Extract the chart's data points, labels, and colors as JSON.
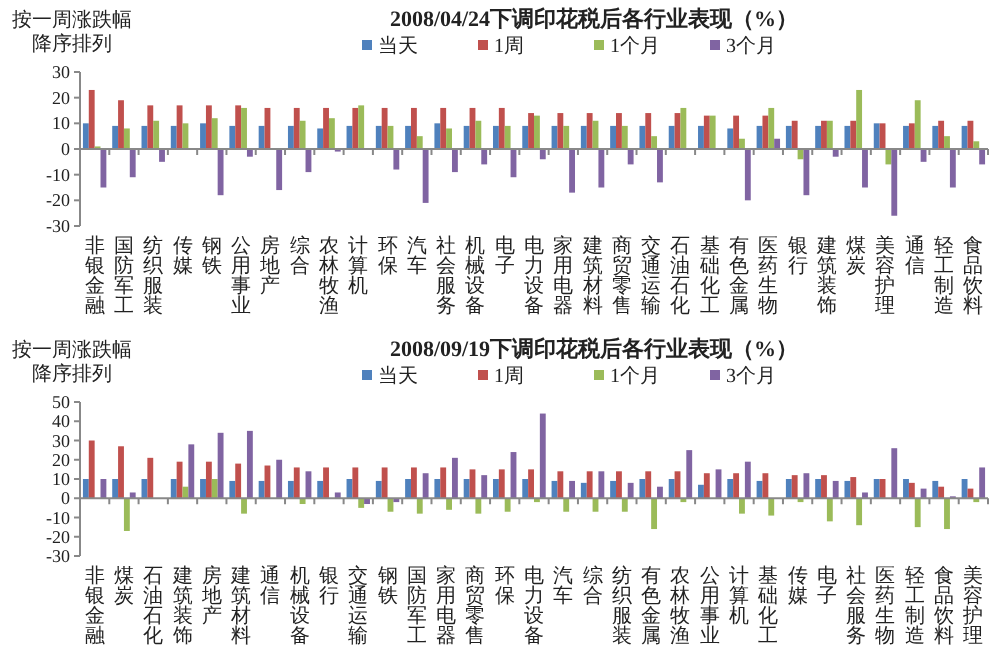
{
  "chart_data": [
    {
      "type": "bar",
      "title": "2008/04/24下调印花税后各行业表现（%）",
      "annotations": [
        "按一周涨跌幅",
        "降序排列"
      ],
      "legend": "top",
      "ylim": [
        -30,
        30
      ],
      "yticks": [
        -30,
        -20,
        -10,
        0,
        10,
        20,
        30
      ],
      "categories": [
        "非银金融",
        "国防军工",
        "纺织服装",
        "传媒",
        "钢铁",
        "公用事业",
        "房地产",
        "综合",
        "农林牧渔",
        "计算机",
        "环保",
        "汽车",
        "社会服务",
        "机械设备",
        "电子",
        "电力设备",
        "家用电器",
        "建筑材料",
        "商贸零售",
        "交通运输",
        "石油石化",
        "基础化工",
        "有色金属",
        "医药生物",
        "银行",
        "建筑装饰",
        "煤炭",
        "美容护理",
        "通信",
        "轻工制造",
        "食品饮料"
      ],
      "series": [
        {
          "name": "当天",
          "color": "#4f81bd",
          "values": [
            10,
            9,
            9,
            9,
            10,
            9,
            9,
            9,
            8,
            9,
            9,
            9,
            10,
            9,
            9,
            9,
            9,
            9,
            9,
            9,
            9,
            9,
            8,
            9,
            9,
            9,
            9,
            10,
            9,
            9,
            9
          ]
        },
        {
          "name": "1周",
          "color": "#c0504d",
          "values": [
            23,
            19,
            17,
            17,
            17,
            17,
            16,
            16,
            16,
            16,
            16,
            16,
            16,
            16,
            16,
            14,
            14,
            14,
            14,
            14,
            14,
            13,
            13,
            13,
            11,
            11,
            11,
            10,
            10,
            11,
            11
          ]
        },
        {
          "name": "1个月",
          "color": "#9bbb59",
          "values": [
            1,
            8,
            11,
            10,
            12,
            16,
            0,
            11,
            12,
            17,
            9,
            5,
            8,
            11,
            9,
            13,
            9,
            11,
            9,
            5,
            16,
            13,
            4,
            16,
            -4,
            11,
            23,
            -6,
            19,
            5,
            3
          ]
        },
        {
          "name": "3个月",
          "color": "#8064a2",
          "values": [
            -15,
            -11,
            -5,
            0,
            -18,
            -3,
            -16,
            -9,
            -1,
            0,
            -8,
            -21,
            -9,
            -6,
            -11,
            -4,
            -17,
            -15,
            -6,
            -13,
            0,
            0,
            -20,
            4,
            -18,
            -3,
            -15,
            -26,
            -5,
            -15,
            -6
          ]
        }
      ]
    },
    {
      "type": "bar",
      "title": "2008/09/19下调印花税后各行业表现（%）",
      "annotations": [
        "按一周涨跌幅",
        "降序排列"
      ],
      "legend": "top",
      "ylim": [
        -30,
        50
      ],
      "yticks": [
        -30,
        -20,
        -10,
        0,
        10,
        20,
        30,
        40,
        50
      ],
      "categories": [
        "非银金融",
        "煤炭",
        "石油石化",
        "建筑装饰",
        "房地产",
        "建筑材料",
        "通信",
        "机械设备",
        "银行",
        "交通运输",
        "钢铁",
        "国防军工",
        "家用电器",
        "商贸零售",
        "环保",
        "电力设备",
        "汽车",
        "综合",
        "纺织服装",
        "有色金属",
        "农林牧渔",
        "公用事业",
        "计算机",
        "基础化工",
        "传媒",
        "电子",
        "社会服务",
        "医药生物",
        "轻工制造",
        "食品饮料",
        "美容护理"
      ],
      "series": [
        {
          "name": "当天",
          "color": "#4f81bd",
          "values": [
            10,
            10,
            10,
            10,
            10,
            9,
            9,
            9,
            9,
            10,
            9,
            10,
            10,
            10,
            10,
            10,
            9,
            8,
            9,
            10,
            10,
            7,
            10,
            9,
            10,
            10,
            9,
            10,
            10,
            9,
            10
          ]
        },
        {
          "name": "1周",
          "color": "#c0504d",
          "values": [
            30,
            27,
            21,
            19,
            19,
            18,
            17,
            16,
            16,
            16,
            16,
            16,
            16,
            15,
            15,
            15,
            14,
            14,
            14,
            14,
            14,
            13,
            13,
            13,
            12,
            12,
            11,
            10,
            8,
            6,
            5
          ]
        },
        {
          "name": "1个月",
          "color": "#9bbb59",
          "values": [
            0,
            -17,
            0,
            6,
            10,
            -8,
            0,
            -3,
            0,
            -5,
            -7,
            -8,
            -6,
            -8,
            -7,
            -2,
            -7,
            -7,
            -7,
            -16,
            -2,
            0,
            -8,
            -9,
            -2,
            -12,
            -14,
            0,
            -15,
            -16,
            -2
          ]
        },
        {
          "name": "3个月",
          "color": "#8064a2",
          "values": [
            10,
            3,
            0,
            28,
            34,
            35,
            20,
            14,
            3,
            -3,
            -2,
            13,
            21,
            12,
            24,
            44,
            9,
            14,
            8,
            6,
            25,
            15,
            19,
            0,
            13,
            9,
            3,
            26,
            5,
            1,
            16
          ]
        }
      ]
    }
  ]
}
